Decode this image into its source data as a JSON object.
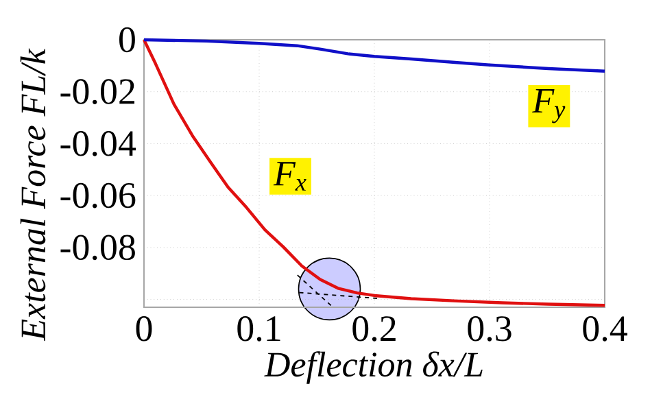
{
  "chart_data": {
    "type": "line",
    "xlabel": "Deflection δx/L",
    "ylabel": "External Force  FL/k",
    "xlim": [
      0,
      0.4
    ],
    "ylim": [
      -0.103,
      0
    ],
    "xticks": [
      0,
      0.1,
      0.2,
      0.3,
      0.4
    ],
    "yticks": [
      0,
      -0.02,
      -0.04,
      -0.06,
      -0.08,
      {
        "value": -0.1,
        "label": null
      }
    ],
    "grid": true,
    "legend": false,
    "marker": "none",
    "line_style": "solid",
    "series": [
      {
        "name": "F$_{x}$",
        "color": "#e01010",
        "x": [
          0,
          0.01,
          0.026,
          0.042,
          0.058,
          0.073,
          0.089,
          0.105,
          0.121,
          0.137,
          0.153,
          0.169,
          0.185,
          0.2,
          0.232,
          0.272,
          0.311,
          0.351,
          0.4
        ],
        "values": [
          0,
          -0.0092,
          -0.0248,
          -0.0369,
          -0.0473,
          -0.0568,
          -0.0646,
          -0.0732,
          -0.0798,
          -0.0871,
          -0.0923,
          -0.0958,
          -0.0975,
          -0.0985,
          -0.0997,
          -0.1006,
          -0.1013,
          -0.1018,
          -0.1023
        ]
      },
      {
        "name": "F$_{y}$",
        "color": "#1010c8",
        "x": [
          0,
          0.054,
          0.1,
          0.133,
          0.153,
          0.177,
          0.2,
          0.232,
          0.272,
          0.3,
          0.351,
          0.4
        ],
        "values": [
          0,
          -0.0005,
          -0.0014,
          -0.0023,
          -0.0036,
          -0.0054,
          -0.0064,
          -0.0074,
          -0.0088,
          -0.0097,
          -0.0111,
          -0.0121
        ]
      }
    ]
  }
}
